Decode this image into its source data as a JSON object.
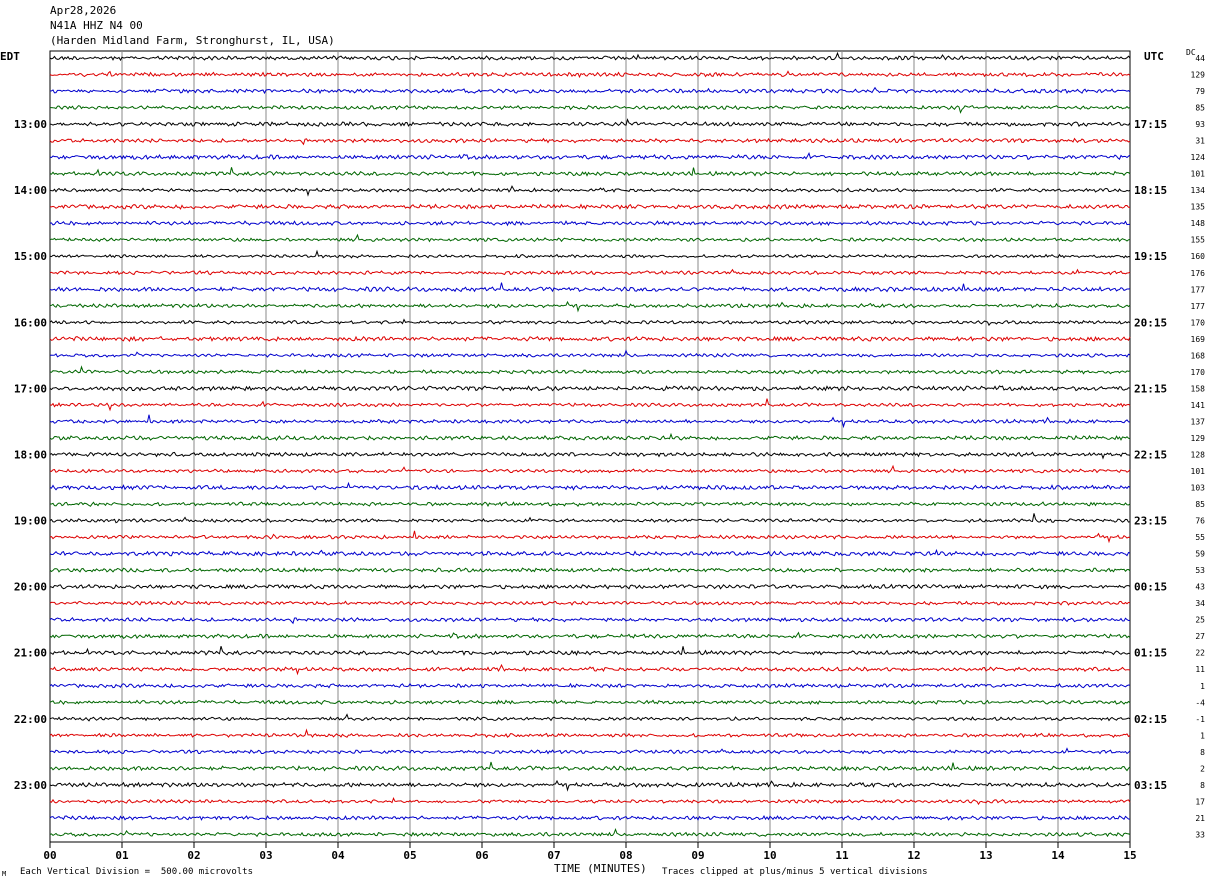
{
  "header": {
    "date": "Apr28,2026",
    "station": "N41A HHZ N4 00",
    "location": "(Harden Midland Farm, Stronghurst, IL, USA)"
  },
  "labels": {
    "left_tz": "EDT",
    "right_tz": "UTC",
    "dc_label": "DC",
    "x_title": "TIME (MINUTES)",
    "scale_note": "Each Vertical Division =  500.00 microvolts",
    "clip_note": "Traces clipped at plus/minus 5 vertical divisions",
    "corner_mark": "M"
  },
  "chart_data": {
    "type": "line",
    "title": "N41A HHZ N4 00",
    "xlabel": "TIME (MINUTES)",
    "xlim": [
      0,
      15
    ],
    "x_ticks": [
      "00",
      "01",
      "02",
      "03",
      "04",
      "05",
      "06",
      "07",
      "08",
      "09",
      "10",
      "11",
      "12",
      "13",
      "14",
      "15"
    ],
    "trace_colors": [
      "#000000",
      "#dd0000",
      "#0000cc",
      "#006600"
    ],
    "left_hour_labels": [
      "13:00",
      "14:00",
      "15:00",
      "16:00",
      "17:00",
      "18:00",
      "19:00",
      "20:00",
      "21:00",
      "22:00",
      "23:00"
    ],
    "right_hour_labels": [
      "17:15",
      "18:15",
      "19:15",
      "20:15",
      "21:15",
      "22:15",
      "23:15",
      "00:15",
      "01:15",
      "02:15",
      "03:15"
    ],
    "hour_label_first_trace": 4,
    "dc_offsets": [
      "44",
      "129",
      "79",
      "85",
      "93",
      "31",
      "124",
      "101",
      "134",
      "135",
      "148",
      "155",
      "160",
      "176",
      "177",
      "177",
      "170",
      "169",
      "168",
      "170",
      "158",
      "141",
      "137",
      "129",
      "128",
      "101",
      "103",
      "85",
      "76",
      "55",
      "59",
      "53",
      "43",
      "34",
      "25",
      "27",
      "22",
      "11",
      "1",
      "-4",
      "-1",
      "1",
      "8",
      "2",
      "8",
      "17",
      "21",
      "33"
    ]
  }
}
